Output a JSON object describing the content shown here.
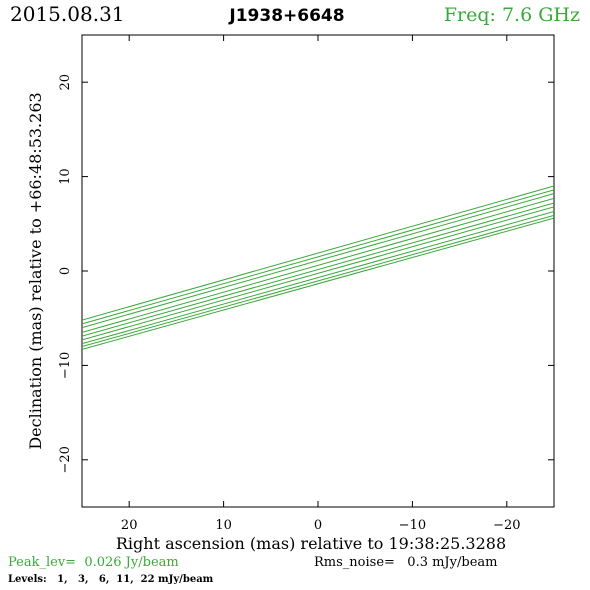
{
  "header": {
    "date": "2015.08.31",
    "source": "J1938+6648",
    "freq": "Freq: 7.6 GHz"
  },
  "footer": {
    "peak": "Peak_lev=  0.026 Jy/beam",
    "rms": "Rms_noise=   0.3 mJy/beam",
    "levels": "Levels:   1,   3,   6,  11,  22 mJy/beam"
  },
  "colors": {
    "contour": "#3aa83a",
    "text": "#000000",
    "freq": "#3aa83a"
  },
  "chart_data": {
    "type": "line",
    "title": "J1938+6648",
    "xlabel": "Right ascension (mas) relative to 19:38:25.3288",
    "ylabel": "Declination (mas) relative to +66:48:53.263",
    "xlim": [
      25,
      -25
    ],
    "ylim": [
      -25,
      25
    ],
    "xticks": [
      20,
      10,
      0,
      -10,
      -20
    ],
    "yticks": [
      20,
      10,
      0,
      -10,
      -20
    ],
    "xtick_labels": [
      "20",
      "10",
      "0",
      "−10",
      "−20"
    ],
    "ytick_labels": [
      "20",
      "10",
      "0",
      "−10",
      "−20"
    ],
    "grid": false,
    "series": [
      {
        "x": [
          25,
          -25
        ],
        "y": [
          -5.2,
          9.0
        ]
      },
      {
        "x": [
          25,
          -25
        ],
        "y": [
          -5.6,
          8.6
        ]
      },
      {
        "x": [
          25,
          -25
        ],
        "y": [
          -6.0,
          8.2
        ]
      },
      {
        "x": [
          25,
          -25
        ],
        "y": [
          -6.5,
          7.7
        ]
      },
      {
        "x": [
          25,
          -25
        ],
        "y": [
          -6.9,
          7.2
        ]
      },
      {
        "x": [
          25,
          -25
        ],
        "y": [
          -7.3,
          6.8
        ]
      },
      {
        "x": [
          25,
          -25
        ],
        "y": [
          -7.7,
          6.3
        ]
      },
      {
        "x": [
          25,
          -25
        ],
        "y": [
          -8.0,
          5.9
        ]
      },
      {
        "x": [
          25,
          -25
        ],
        "y": [
          -8.3,
          5.6
        ]
      }
    ]
  }
}
